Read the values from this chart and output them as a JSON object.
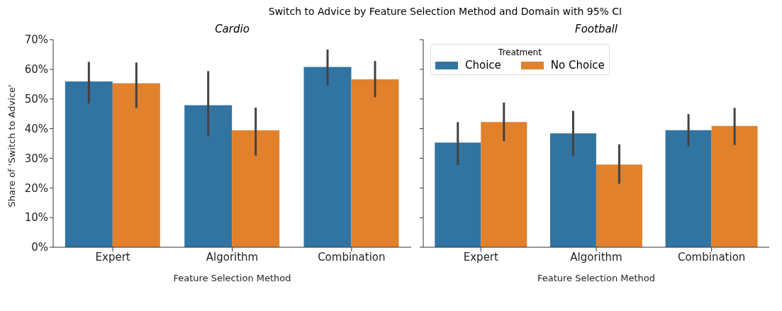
{
  "chart_data": [
    {
      "type": "bar",
      "title": "Switch to Advice by Feature Selection Method and Domain with 95% CI",
      "subtitle": "Cardio",
      "xlabel": "Feature Selection Method",
      "ylabel": "Share of 'Switch to Advice'",
      "categories": [
        "Expert",
        "Algorithm",
        "Combination"
      ],
      "series": [
        {
          "color": "#3274a1",
          "values": [
            55.9,
            47.9,
            60.8
          ],
          "errors": [
            [
              48.5,
              62.5
            ],
            [
              37.4,
              59.4
            ],
            [
              54.5,
              66.7
            ]
          ]
        },
        {
          "color": "#e1812c",
          "values": [
            55.3,
            39.4,
            56.6
          ],
          "errors": [
            [
              47.0,
              62.3
            ],
            [
              30.9,
              47.1
            ],
            [
              50.6,
              62.8
            ]
          ]
        }
      ],
      "ylim": [
        0,
        70
      ],
      "yticks": [
        {
          "value": 0,
          "label": "0%"
        },
        {
          "value": 10,
          "label": "10%"
        },
        {
          "value": 20,
          "label": "20%"
        },
        {
          "value": 30,
          "label": "30%"
        },
        {
          "value": 40,
          "label": "40%"
        },
        {
          "value": 50,
          "label": "50%"
        },
        {
          "value": 60,
          "label": "60%"
        },
        {
          "value": 70,
          "label": "70%"
        }
      ],
      "grid": false,
      "legend": false
    },
    {
      "type": "bar",
      "subtitle": "Football",
      "xlabel": "Feature Selection Method",
      "legend_title": "Treatment",
      "categories": [
        "Expert",
        "Algorithm",
        "Combination"
      ],
      "series": [
        {
          "name": "Choice",
          "color": "#3274a1",
          "values": [
            35.3,
            38.4,
            39.5
          ],
          "errors": [
            [
              27.7,
              42.2
            ],
            [
              30.7,
              46.0
            ],
            [
              34.1,
              44.9
            ]
          ]
        },
        {
          "name": "No Choice",
          "color": "#e1812c",
          "values": [
            42.2,
            27.9,
            40.9
          ],
          "errors": [
            [
              35.8,
              48.8
            ],
            [
              21.4,
              34.7
            ],
            [
              34.5,
              47.0
            ]
          ]
        }
      ],
      "ylim": [
        0,
        70
      ],
      "yticks": [
        0,
        10,
        20,
        30,
        40,
        50,
        60,
        70
      ],
      "grid": false,
      "legend": "top left",
      "tick_labels": "x"
    }
  ]
}
